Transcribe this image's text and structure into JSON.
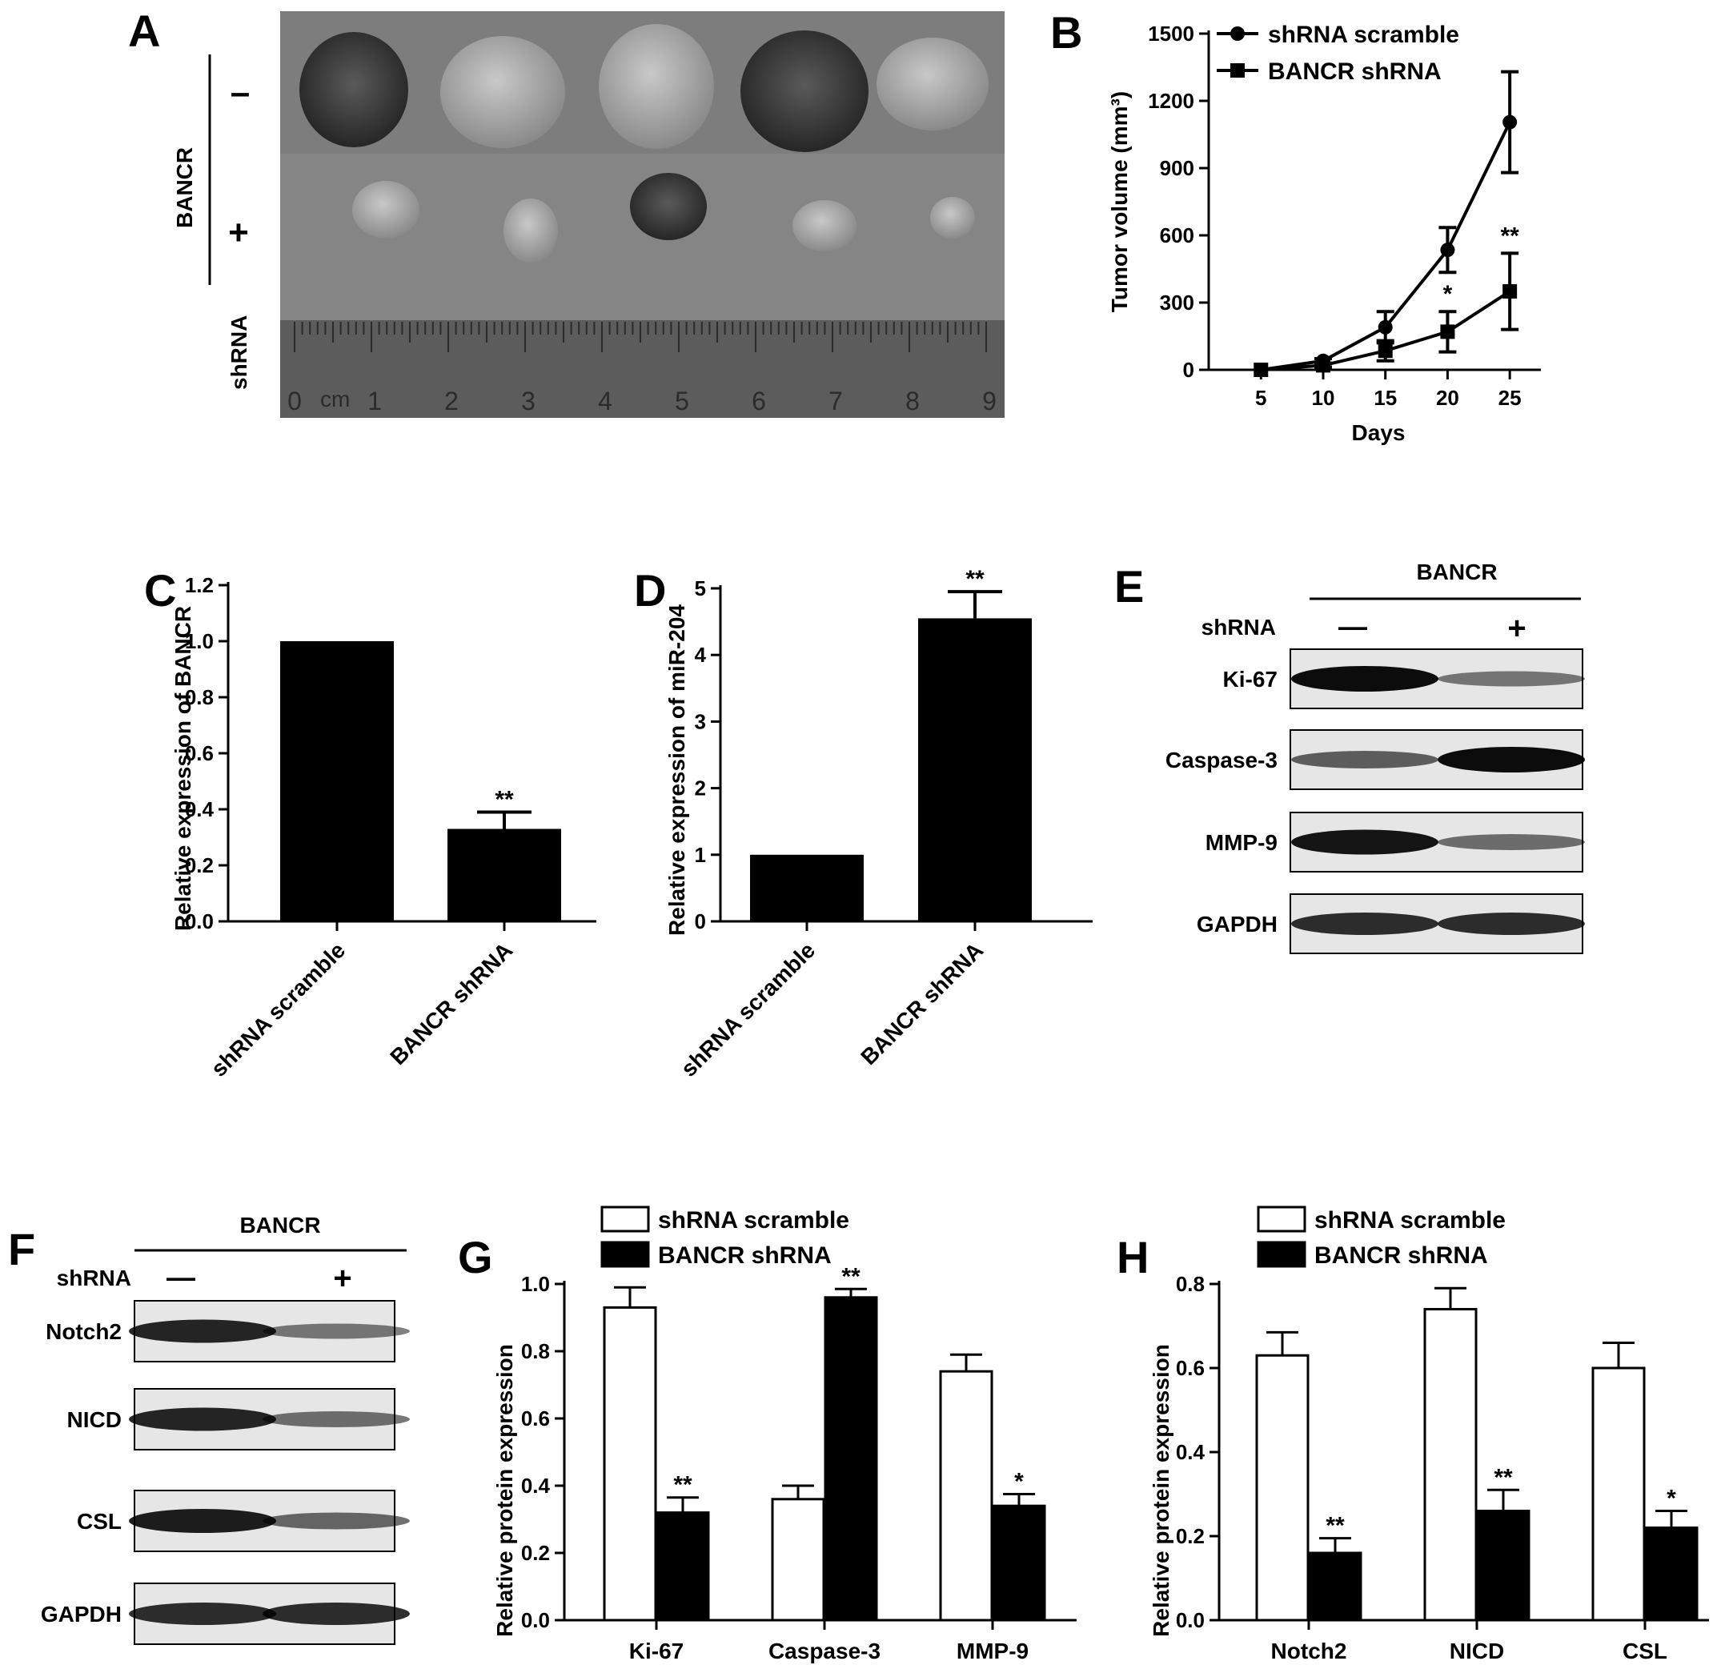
{
  "panels": {
    "A": {
      "letter": "A",
      "group": "BANCR",
      "subgroup": "shRNA",
      "row_minus": "–",
      "row_plus": "+",
      "ruler_unit": "cm",
      "ruler_ticks": [
        "0",
        "1",
        "2",
        "3",
        "4",
        "5",
        "6",
        "7",
        "8",
        "9"
      ]
    },
    "E": {
      "letter": "E",
      "group": "BANCR",
      "row_label": "shRNA",
      "lane_minus": "—",
      "lane_plus": "+",
      "bands": [
        "Ki-67",
        "Caspase-3",
        "MMP-9",
        "GAPDH"
      ]
    },
    "F": {
      "letter": "F",
      "group": "BANCR",
      "row_label": "shRNA",
      "lane_minus": "—",
      "lane_plus": "+",
      "bands": [
        "Notch2",
        "NICD",
        "CSL",
        "GAPDH"
      ]
    }
  },
  "colors": {
    "black": "#000000",
    "white": "#ffffff",
    "photo_bg": "#7a7a7a",
    "blot_bg": "#e6e6e6"
  },
  "chart_data": [
    {
      "id": "B",
      "letter": "B",
      "type": "line",
      "x": [
        5,
        10,
        15,
        20,
        25
      ],
      "xlabel": "Days",
      "ylabel": "Tumor volume (mm³)",
      "ylim": [
        0,
        1500
      ],
      "yticks": [
        "0",
        "300",
        "600",
        "900",
        "1200",
        "1500"
      ],
      "xticks": [
        "5",
        "10",
        "15",
        "20",
        "25"
      ],
      "legend_position": "top-left",
      "series": [
        {
          "name": "shRNA scramble",
          "marker": "circle",
          "values": [
            0,
            40,
            190,
            535,
            1105
          ],
          "errors": [
            0,
            10,
            70,
            100,
            225
          ],
          "annotations": [
            "",
            "",
            "",
            "",
            ""
          ]
        },
        {
          "name": "BANCR shRNA",
          "marker": "square",
          "values": [
            0,
            20,
            85,
            170,
            350
          ],
          "errors": [
            0,
            8,
            45,
            90,
            170
          ],
          "annotations": [
            "",
            "",
            "",
            "*",
            "**"
          ]
        }
      ]
    },
    {
      "id": "C",
      "letter": "C",
      "type": "bar",
      "categories": [
        "shRNA scramble",
        "BANCR shRNA"
      ],
      "values": [
        1.0,
        0.33
      ],
      "errors": [
        0,
        0.06
      ],
      "annotations": [
        "",
        "**"
      ],
      "ylabel": "Relative expression of BANCR",
      "ylim": [
        0,
        1.2
      ],
      "yticks": [
        "0.0",
        "0.2",
        "0.4",
        "0.6",
        "0.8",
        "1.0",
        "1.2"
      ]
    },
    {
      "id": "D",
      "letter": "D",
      "type": "bar",
      "categories": [
        "shRNA scramble",
        "BANCR shRNA"
      ],
      "values": [
        1.0,
        4.55
      ],
      "errors": [
        0,
        0.4
      ],
      "annotations": [
        "",
        "**"
      ],
      "ylabel": "Relative expression of miR-204",
      "ylim": [
        0,
        5
      ],
      "yticks": [
        "0",
        "1",
        "2",
        "3",
        "4",
        "5"
      ]
    },
    {
      "id": "G",
      "letter": "G",
      "type": "bar",
      "categories": [
        "Ki-67",
        "Caspase-3",
        "MMP-9"
      ],
      "ylabel": "Relative protein expression",
      "ylim": [
        0,
        1.0
      ],
      "yticks": [
        "0.0",
        "0.2",
        "0.4",
        "0.6",
        "0.8",
        "1.0"
      ],
      "legend_position": "top",
      "series": [
        {
          "name": "shRNA scramble",
          "fill": "white",
          "values": [
            0.93,
            0.36,
            0.74
          ],
          "errors": [
            0.06,
            0.04,
            0.05
          ],
          "annotations": [
            "",
            "",
            ""
          ]
        },
        {
          "name": "BANCR shRNA",
          "fill": "black",
          "values": [
            0.32,
            0.96,
            0.34
          ],
          "errors": [
            0.045,
            0.025,
            0.035
          ],
          "annotations": [
            "**",
            "**",
            "*"
          ]
        }
      ]
    },
    {
      "id": "H",
      "letter": "H",
      "type": "bar",
      "categories": [
        "Notch2",
        "NICD",
        "CSL"
      ],
      "ylabel": "Relative protein expression",
      "ylim": [
        0,
        0.8
      ],
      "yticks": [
        "0.0",
        "0.2",
        "0.4",
        "0.6",
        "0.8"
      ],
      "legend_position": "top",
      "series": [
        {
          "name": "shRNA scramble",
          "fill": "white",
          "values": [
            0.63,
            0.74,
            0.6
          ],
          "errors": [
            0.055,
            0.05,
            0.06
          ],
          "annotations": [
            "",
            "",
            ""
          ]
        },
        {
          "name": "BANCR shRNA",
          "fill": "black",
          "values": [
            0.16,
            0.26,
            0.22
          ],
          "errors": [
            0.035,
            0.05,
            0.04
          ],
          "annotations": [
            "**",
            "**",
            "*"
          ]
        }
      ]
    }
  ]
}
